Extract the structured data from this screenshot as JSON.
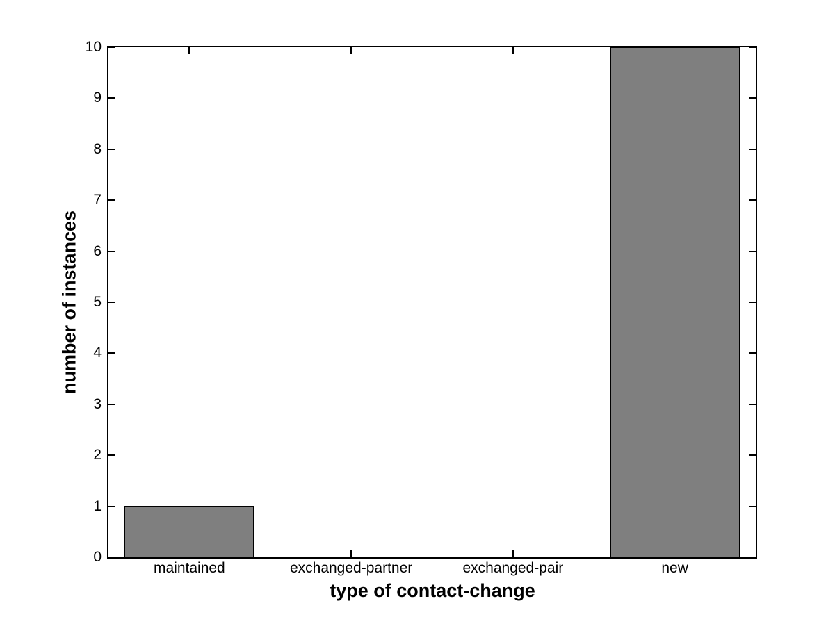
{
  "chart_data": {
    "type": "bar",
    "title": "",
    "xlabel": "type of contact-change",
    "ylabel": "number of instances",
    "categories": [
      "maintained",
      "exchanged-partner",
      "exchanged-pair",
      "new"
    ],
    "values": [
      1,
      0,
      0,
      10
    ],
    "ylim": [
      0,
      10
    ],
    "yticks": [
      0,
      1,
      2,
      3,
      4,
      5,
      6,
      7,
      8,
      9,
      10
    ],
    "bar_width_fraction": 0.8,
    "grid": false,
    "legend": null,
    "colors": {
      "bar_fill": "#7f7f7f",
      "bar_edge": "#000000",
      "axis": "#000000",
      "background": "#ffffff",
      "text": "#000000"
    }
  }
}
